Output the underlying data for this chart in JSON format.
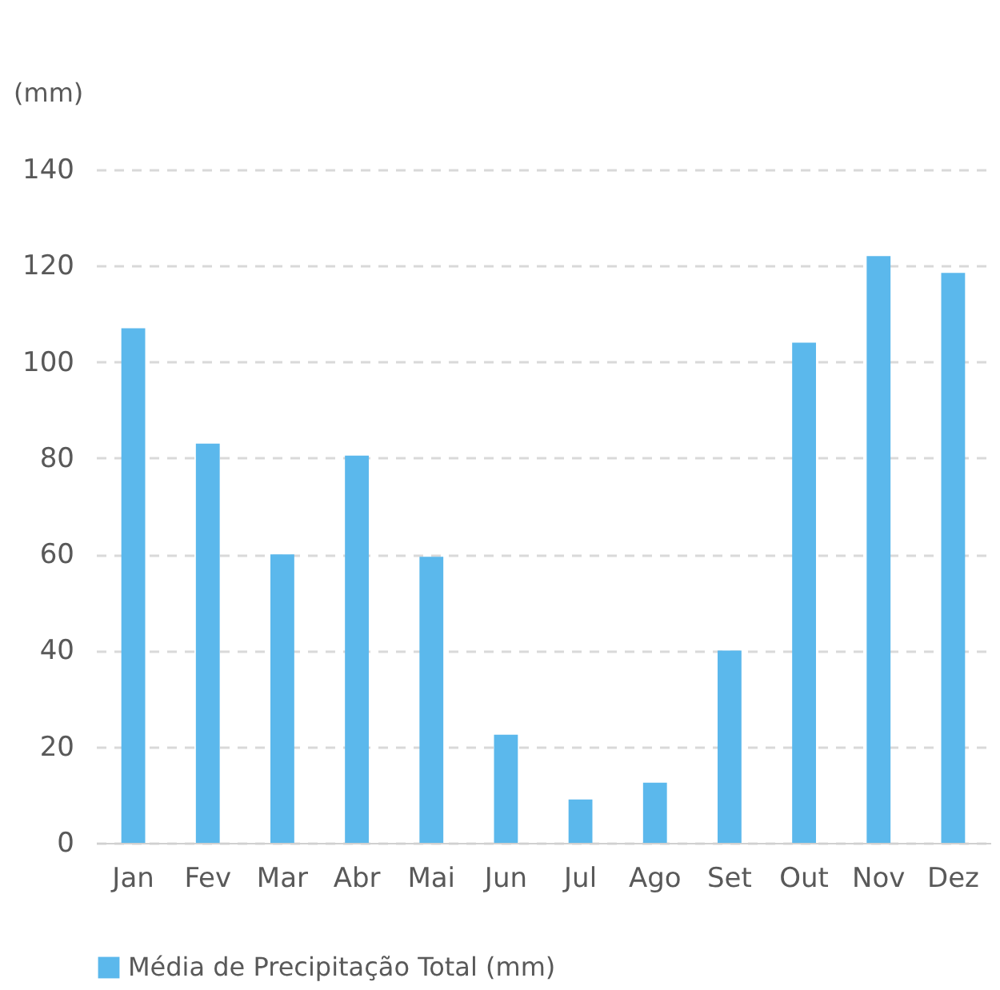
{
  "chart_data": {
    "type": "bar",
    "ylabel": "(mm)",
    "categories": [
      "Jan",
      "Fev",
      "Mar",
      "Abr",
      "Mai",
      "Jun",
      "Jul",
      "Ago",
      "Set",
      "Out",
      "Nov",
      "Dez"
    ],
    "series": [
      {
        "name": "Média de Precipitação Total (mm)",
        "color": "#5bb8ec",
        "values": [
          107,
          83,
          60,
          80.5,
          59.5,
          22.5,
          9,
          12.5,
          40,
          104,
          122,
          118.5
        ]
      }
    ],
    "ylim": [
      0,
      140
    ],
    "yticks": [
      0,
      20,
      40,
      60,
      80,
      100,
      120,
      140
    ],
    "grid": "y",
    "legend": "bottom"
  }
}
